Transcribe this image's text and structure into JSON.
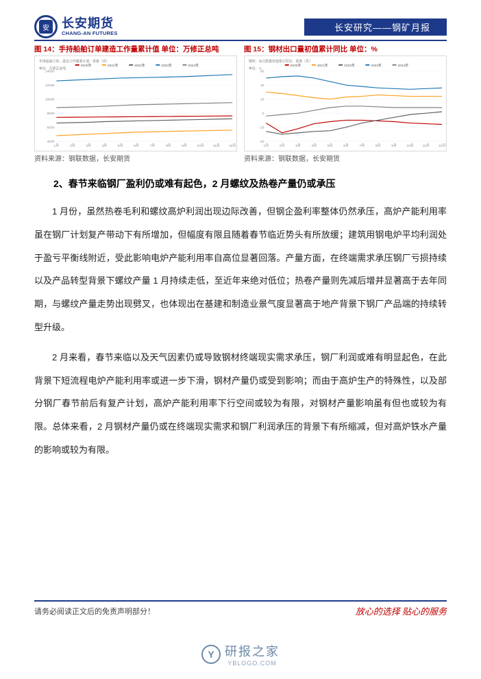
{
  "header": {
    "logo_cn": "长安期货",
    "logo_en": "CHANG-AN FUTURES",
    "bar_text": "长安研究——钢矿月报"
  },
  "charts": {
    "left": {
      "type": "line",
      "title": "图 14：手持船舶订单建造工作量累计值    单位：万修正总吨",
      "small_caption": "手持船舶订单，建造工作量累计值：季度（月）",
      "legend": [
        "2020年",
        "2021年",
        "2022年",
        "2023年",
        "2024年"
      ],
      "x_ticks": [
        1,
        2,
        3,
        4,
        5,
        6,
        7,
        8,
        9,
        10,
        11,
        12
      ],
      "y_label": "单位：万修正总吨",
      "ylim": [
        4000,
        14000
      ],
      "series_colors": [
        "#c00000",
        "#ff9e1b",
        "#606060",
        "#1f77b4",
        "#808080"
      ],
      "series": [
        [
          7400,
          7420,
          7440,
          7460,
          7480,
          7500,
          7520,
          7540,
          7560,
          7580,
          7600,
          7620
        ],
        [
          4800,
          4900,
          5000,
          5100,
          5200,
          5300,
          5350,
          5400,
          5450,
          5500,
          5550,
          5600
        ],
        [
          6600,
          6650,
          6700,
          6800,
          6850,
          6900,
          6950,
          7000,
          7050,
          7100,
          7150,
          7200
        ],
        [
          12600,
          12700,
          12800,
          12900,
          13000,
          13050,
          13100,
          13150,
          13200,
          13300,
          13400,
          13500
        ],
        [
          8800,
          8850,
          8900,
          9000,
          9100,
          9200,
          9250,
          9300,
          9350,
          9400,
          9450,
          9500
        ]
      ],
      "background_color": "#ffffff",
      "grid_color": "#f0f0f0",
      "source": "资料来源：钢联数据，长安期货"
    },
    "right": {
      "type": "line",
      "title": "图 15：钢材出口量初值累计同比                           单位：%",
      "small_caption": "钢材：出口数量初值累计同比：季度（月）",
      "legend": [
        "2020年",
        "2021年",
        "2022年",
        "2023年",
        "2024年"
      ],
      "x_ticks": [
        1,
        2,
        3,
        4,
        5,
        6,
        7,
        8,
        9,
        10,
        11,
        12
      ],
      "y_label": "单位：%",
      "ylim": [
        -40,
        60
      ],
      "series_colors": [
        "#c00000",
        "#ff9e1b",
        "#606060",
        "#1f77b4",
        "#808080"
      ],
      "series": [
        [
          -14,
          -28,
          -22,
          -15,
          -12,
          -10,
          -10,
          -11,
          -12,
          -14,
          -15,
          -16
        ],
        [
          30,
          28,
          25,
          22,
          20,
          23,
          24,
          26,
          25,
          24,
          24,
          24
        ],
        [
          -26,
          -30,
          -28,
          -26,
          -25,
          -20,
          -14,
          -10,
          -6,
          -2,
          0,
          2
        ],
        [
          50,
          52,
          53,
          50,
          45,
          40,
          38,
          36,
          35,
          34,
          35,
          36
        ],
        [
          -4,
          -2,
          0,
          4,
          8,
          10,
          10,
          9,
          8,
          8,
          8,
          8
        ]
      ],
      "background_color": "#ffffff",
      "grid_color": "#f0f0f0",
      "source": "资料来源：钢联数据，长安期货"
    }
  },
  "section_title": "2、春节来临钢厂盈利仍或难有起色，2 月螺纹及热卷产量仍或承压",
  "paragraphs": [
    "1 月份，虽然热卷毛利和螺纹高炉利润出现边际改善，但钢企盈利率整体仍然承压，高炉产能利用率虽在钢厂计划复产带动下有所增加，但幅度有限且随着春节临近势头有所放缓；建筑用钢电炉平均利润处于盈亏平衡线附近，受此影响电炉产能利用率自高位显著回落。产量方面，在终端需求承压钢厂亏损持续以及产品转型背景下螺纹产量 1 月持续走低，至近年来绝对低位；热卷产量则先减后增并显著高于去年同期，与螺纹产量走势出现劈叉，也体现出在基建和制造业景气度显著高于地产背景下钢厂产品端的持续转型升级。",
    "2 月来看，春节来临以及天气因素仍或导致钢材终端现实需求承压，钢厂利润或难有明显起色，在此背景下短流程电炉产能利用率或进一步下滑，钢材产量仍或受到影响；而由于高炉生产的特殊性，以及部分钢厂春节前后有复产计划，高炉产能利用率下行空间或较为有限，对钢材产量影响虽有但也或较为有限。总体来看，2 月钢材产量仍或在终端现实需求和钢厂利润承压的背景下有所缩减，但对高炉铁水产量的影响或较为有限。"
  ],
  "footer": {
    "disclaimer": "请务必阅读正文后的免责声明部分！",
    "slogan": "放心的选择  贴心的服务"
  },
  "watermark": {
    "name": "研报之家",
    "url": "YBLOGO.COM"
  }
}
